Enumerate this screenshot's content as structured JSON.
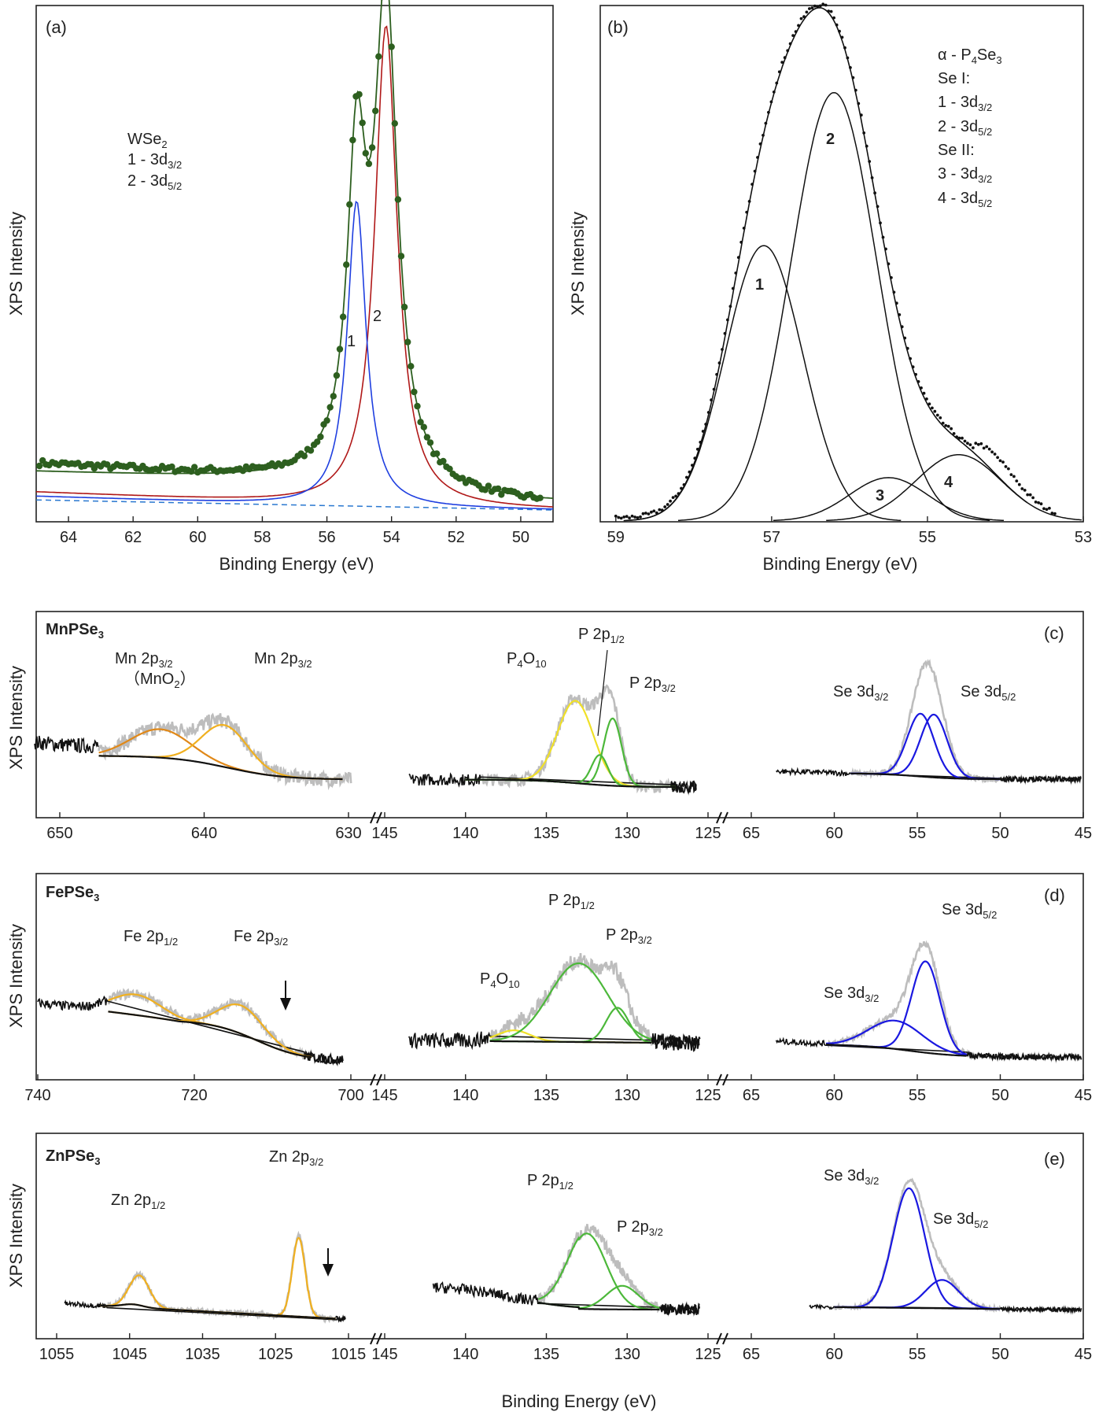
{
  "chart_data": [
    {
      "panel": "(a)",
      "type": "line",
      "xlabel": "Binding Energy (eV)",
      "ylabel": "XPS Intensity",
      "xlim": [
        65,
        49
      ],
      "xticks": [
        "64",
        "62",
        "60",
        "58",
        "56",
        "54",
        "52",
        "50"
      ],
      "legend": [
        "WSe",
        "2",
        "1 - 3d",
        "3/2",
        "2 - 3d",
        "5/2"
      ],
      "peak_labels": [
        "1",
        "2"
      ],
      "series": [
        {
          "name": "data",
          "x": [
            65,
            63,
            61,
            59,
            57.5,
            56.5,
            56,
            55.5,
            55.1,
            54.8,
            54.5,
            54.2,
            53.9,
            53.5,
            53,
            52.5,
            52,
            51,
            50,
            49.2
          ],
          "y": [
            0.03,
            0.04,
            0.05,
            0.07,
            0.1,
            0.15,
            0.25,
            0.52,
            0.77,
            0.62,
            0.65,
            0.98,
            0.93,
            0.6,
            0.35,
            0.18,
            0.1,
            0.05,
            0.02,
            0.01
          ]
        },
        {
          "name": "1 - 3d3/2 (W)",
          "x": [
            58,
            56.5,
            56,
            55.6,
            55.3,
            55.1,
            54.9,
            54.6,
            54.2,
            53.5,
            52,
            50
          ],
          "y": [
            0.03,
            0.06,
            0.14,
            0.33,
            0.54,
            0.62,
            0.54,
            0.33,
            0.14,
            0.06,
            0.03,
            0.01
          ]
        },
        {
          "name": "2 - 3d5/2",
          "x": [
            58,
            56,
            55.5,
            55,
            54.6,
            54.3,
            54.15,
            54,
            53.7,
            53.3,
            52.5,
            51,
            50
          ],
          "y": [
            0.02,
            0.05,
            0.1,
            0.22,
            0.45,
            0.8,
            0.98,
            0.9,
            0.65,
            0.4,
            0.18,
            0.05,
            0.02
          ]
        },
        {
          "name": "baseline",
          "x": [
            65,
            49
          ],
          "y": [
            0.02,
            0.0
          ]
        }
      ]
    },
    {
      "panel": "(b)",
      "type": "line",
      "xlabel": "Binding Energy (eV)",
      "ylabel": "XPS Intensity",
      "xlim": [
        59.2,
        53
      ],
      "xticks": [
        "59",
        "57",
        "55",
        "53"
      ],
      "legend": [
        "α - P",
        "4",
        "Se",
        "3",
        "Se I:",
        "1 - 3d",
        "3/2",
        "2 - 3d",
        "5/2",
        "Se II:",
        "3 - 3d",
        "3/2",
        "4 - 3d",
        "5/2"
      ],
      "peak_labels": [
        "1",
        "2",
        "3",
        "4"
      ],
      "series": [
        {
          "name": "1 - 3d3/2 (Se I)",
          "center": 57.1,
          "height": 0.54
        },
        {
          "name": "2 - 3d5/2 (Se I)",
          "center": 56.2,
          "height": 0.84
        },
        {
          "name": "3 - 3d3/2 (Se II)",
          "center": 55.5,
          "height": 0.085
        },
        {
          "name": "4 - 3d5/2 (Se II)",
          "center": 54.6,
          "height": 0.13
        },
        {
          "name": "envelope",
          "peak": 56.4,
          "height": 1.0
        }
      ]
    },
    {
      "panel": "(c)",
      "type": "line",
      "compound": [
        "MnPSe",
        "3"
      ],
      "ylabel": "XPS Intensity",
      "xticks_mn": [
        "650",
        "640",
        "630"
      ],
      "xticks_p": [
        "145",
        "140",
        "135",
        "130",
        "125"
      ],
      "xticks_se": [
        "65",
        "60",
        "55",
        "50",
        "45"
      ],
      "peak_labels": [
        "Mn 2p",
        "3/2",
        "（MnO",
        "2",
        "）",
        "Mn 2p",
        "3/2",
        "P",
        "4",
        "O",
        "10",
        "P 2p",
        "1/2",
        "P 2p",
        "3/2",
        "Se 3d",
        "3/2",
        "Se 3d",
        "5/2"
      ],
      "peaks": [
        {
          "name": "Mn 2p3/2 (MnO2)",
          "x": 644,
          "height": 0.35
        },
        {
          "name": "Mn 2p3/2",
          "x": 639,
          "height": 0.5
        },
        {
          "name": "P4O10",
          "x": 133.2,
          "height": 0.62
        },
        {
          "name": "P 2p1/2",
          "x": 131.7,
          "height": 0.28
        },
        {
          "name": "P 2p3/2",
          "x": 130.9,
          "height": 0.55
        },
        {
          "name": "Se 3d3/2",
          "x": 54.8,
          "height": 0.55
        },
        {
          "name": "Se 3d5/2",
          "x": 54.0,
          "height": 0.55
        }
      ]
    },
    {
      "panel": "(d)",
      "type": "line",
      "compound": [
        "FePSe",
        "3"
      ],
      "ylabel": "XPS Intensity",
      "xticks_fe": [
        "740",
        "720",
        "700"
      ],
      "xticks_p": [
        "145",
        "140",
        "135",
        "130",
        "125"
      ],
      "xticks_se": [
        "65",
        "60",
        "55",
        "50",
        "45"
      ],
      "peak_labels": [
        "Fe 2p",
        "1/2",
        "Fe 2p",
        "3/2",
        "P",
        "4",
        "O",
        "10",
        "P 2p",
        "1/2",
        "P 2p",
        "3/2",
        "Se 3d",
        "3/2",
        "Se 3d",
        "5/2"
      ],
      "peaks": [
        {
          "name": "Fe 2p1/2",
          "x": 727.5,
          "height": 0.25
        },
        {
          "name": "Fe 2p3/2",
          "x": 714,
          "height": 0.3
        },
        {
          "name": "P4O10",
          "x": 137,
          "height": 0.2
        },
        {
          "name": "P 2p1/2",
          "x": 133,
          "height": 0.75
        },
        {
          "name": "P 2p3/2",
          "x": 130.5,
          "height": 0.35
        },
        {
          "name": "Se 3d3/2",
          "x": 56.3,
          "height": 0.42
        },
        {
          "name": "Se 3d5/2",
          "x": 54.5,
          "height": 0.85
        }
      ]
    },
    {
      "panel": "(e)",
      "type": "line",
      "compound": [
        "ZnPSe",
        "3"
      ],
      "ylabel": "XPS Intensity",
      "xlabel": "Binding Energy (eV)",
      "xticks_zn": [
        "1055",
        "1045",
        "1035",
        "1025",
        "1015"
      ],
      "xticks_p": [
        "145",
        "140",
        "135",
        "130",
        "125"
      ],
      "xticks_se": [
        "65",
        "60",
        "55",
        "50",
        "45"
      ],
      "peak_labels": [
        "Zn 2p",
        "1/2",
        "Zn 2p",
        "3/2",
        "P 2p",
        "1/2",
        "P 2p",
        "3/2",
        "Se 3d",
        "3/2",
        "Se 3d",
        "5/2"
      ],
      "peaks": [
        {
          "name": "Zn 2p1/2",
          "x": 1043.5,
          "height": 0.35
        },
        {
          "name": "Zn 2p3/2",
          "x": 1021,
          "height": 0.88
        },
        {
          "name": "P 2p1/2",
          "x": 132.5,
          "height": 0.75
        },
        {
          "name": "P 2p3/2",
          "x": 130.3,
          "height": 0.25
        },
        {
          "name": "Se 3d3/2",
          "x": 55.5,
          "height": 0.9
        },
        {
          "name": "Se 3d5/2",
          "x": 53.5,
          "height": 0.25
        }
      ]
    }
  ],
  "colors": {
    "frame": "#222222",
    "data_a": "#2d5f1f",
    "fit_blue": "#1f3fe0",
    "fit_red": "#b01818",
    "baseline_a": "#2a78d0",
    "raw_gray": "#bdbdbd",
    "fit_yellow": "#f0b020",
    "fit_orange": "#e08818",
    "fit_light_yellow": "#f0e028",
    "fit_green": "#4cb83a",
    "se_blue": "#1a18e0",
    "black": "#111111"
  }
}
